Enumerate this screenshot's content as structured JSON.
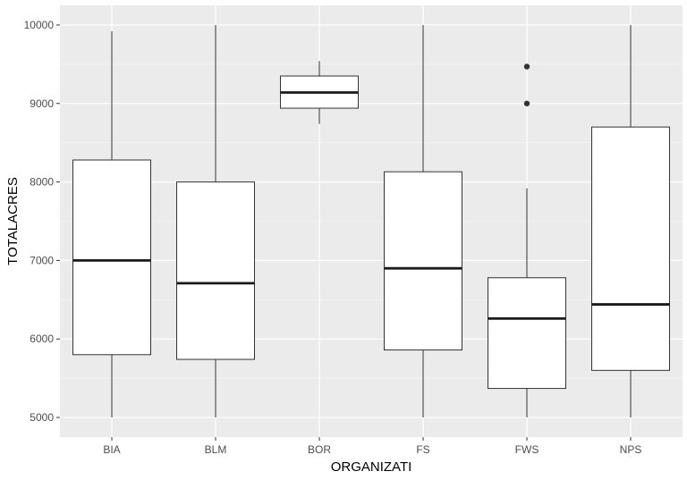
{
  "chart_data": {
    "type": "boxplot",
    "xlabel": "ORGANIZATI",
    "ylabel": "TOTALACRES",
    "ylim": [
      4750,
      10250
    ],
    "yticks": [
      5000,
      6000,
      7000,
      8000,
      9000,
      10000
    ],
    "grid": true,
    "categories": [
      "BIA",
      "BLM",
      "BOR",
      "FS",
      "FWS",
      "NPS"
    ],
    "boxes": [
      {
        "category": "BIA",
        "min": 5000,
        "q1": 5800,
        "median": 7000,
        "q3": 8280,
        "max": 9920,
        "outliers": []
      },
      {
        "category": "BLM",
        "min": 5000,
        "q1": 5740,
        "median": 6710,
        "q3": 8000,
        "max": 10000,
        "outliers": []
      },
      {
        "category": "BOR",
        "min": 8740,
        "q1": 8940,
        "median": 9140,
        "q3": 9350,
        "max": 9540,
        "outliers": []
      },
      {
        "category": "FS",
        "min": 5000,
        "q1": 5860,
        "median": 6900,
        "q3": 8130,
        "max": 10000,
        "outliers": []
      },
      {
        "category": "FWS",
        "min": 5000,
        "q1": 5370,
        "median": 6260,
        "q3": 6780,
        "max": 7920,
        "outliers": [
          9000,
          9470
        ]
      },
      {
        "category": "NPS",
        "min": 5000,
        "q1": 5600,
        "median": 6440,
        "q3": 8700,
        "max": 10000,
        "outliers": []
      }
    ],
    "colors": {
      "panel": "#ebebeb",
      "grid_major": "#ffffff",
      "grid_minor": "#f5f5f5",
      "box_fill": "#ffffff",
      "box_stroke": "#333333",
      "median": "#1a1a1a"
    }
  }
}
